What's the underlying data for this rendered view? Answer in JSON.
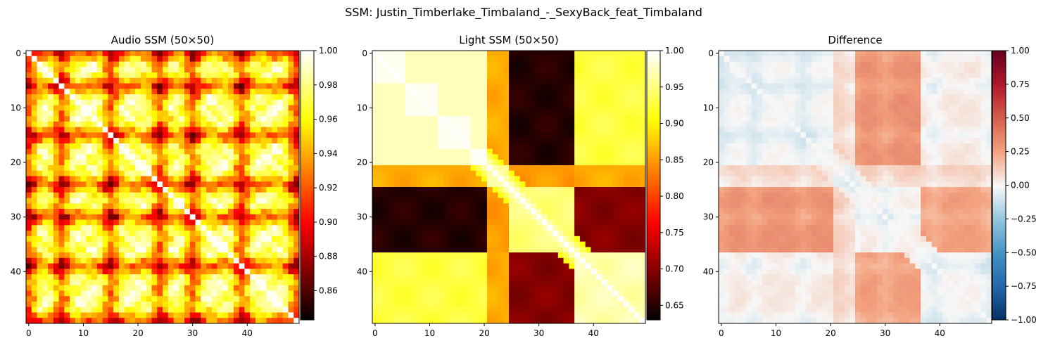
{
  "figure": {
    "suptitle": "SSM: Justin_Timberlake_Timbaland_-_SexyBack_feat_Timbaland"
  },
  "chart_data": [
    {
      "type": "heatmap",
      "title": "Audio SSM (50×50)",
      "size": 50,
      "colormap": "hot",
      "vmin": 0.843,
      "vmax": 1.0,
      "x_ticks": [
        0,
        10,
        20,
        30,
        40
      ],
      "y_ticks": [
        0,
        10,
        20,
        30,
        40
      ],
      "colorbar_ticks": [
        0.86,
        0.88,
        0.9,
        0.92,
        0.94,
        0.96,
        0.98,
        1.0
      ],
      "colorbar_tick_labels": [
        "0.86",
        "0.88",
        "0.90",
        "0.92",
        "0.94",
        "0.96",
        "0.98",
        "1.00"
      ],
      "structure": {
        "diagonal": 1.0,
        "dark_bands": [
          0,
          6,
          15,
          24,
          30,
          39,
          49
        ],
        "edge_bands": [
          0,
          49
        ]
      }
    },
    {
      "type": "heatmap",
      "title": "Light SSM (50×50)",
      "size": 50,
      "colormap": "hot",
      "vmin": 0.63,
      "vmax": 1.0,
      "x_ticks": [
        0,
        10,
        20,
        30,
        40
      ],
      "y_ticks": [
        0,
        10,
        20,
        30,
        40
      ],
      "colorbar_ticks": [
        0.65,
        0.7,
        0.75,
        0.8,
        0.85,
        0.9,
        0.95,
        1.0
      ],
      "colorbar_tick_labels": [
        "0.65",
        "0.70",
        "0.75",
        "0.80",
        "0.85",
        "0.90",
        "0.95",
        "1.00"
      ],
      "structure": {
        "diagonal": 1.0,
        "segments": [
          [
            0,
            20
          ],
          [
            21,
            24
          ],
          [
            25,
            36
          ],
          [
            37,
            49
          ]
        ]
      }
    },
    {
      "type": "heatmap",
      "title": "Difference",
      "size": 50,
      "colormap": "RdBu_r",
      "vmin": -1.0,
      "vmax": 1.0,
      "x_ticks": [
        0,
        10,
        20,
        30,
        40
      ],
      "y_ticks": [
        0,
        10,
        20,
        30,
        40
      ],
      "colorbar_ticks": [
        -1.0,
        -0.75,
        -0.5,
        -0.25,
        0.0,
        0.25,
        0.5,
        0.75,
        1.0
      ],
      "colorbar_tick_labels": [
        "−1.00",
        "−0.75",
        "−0.50",
        "−0.25",
        "0.00",
        "0.25",
        "0.50",
        "0.75",
        "1.00"
      ],
      "structure": {
        "definition": "Audio SSM minus Light SSM",
        "max_value": 0.3,
        "min_value": -0.05
      }
    }
  ]
}
